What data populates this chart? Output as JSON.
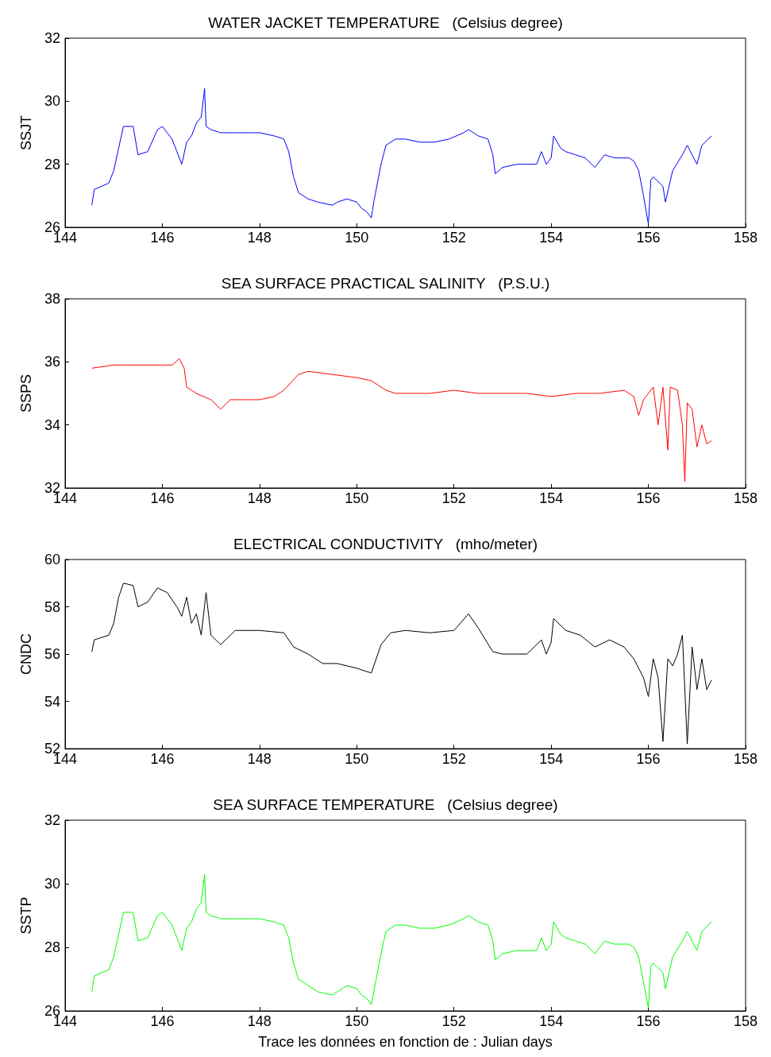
{
  "chart_data": [
    {
      "type": "line",
      "title": "WATER JACKET TEMPERATURE   (Celsius degree)",
      "ylabel": "SSJT",
      "grid": false,
      "xlim": [
        144,
        158
      ],
      "xticks": [
        144,
        146,
        148,
        150,
        152,
        154,
        156,
        158
      ],
      "ylim": [
        26,
        32
      ],
      "yticks": [
        26,
        28,
        30,
        32
      ],
      "x": [
        144.55,
        144.6,
        144.9,
        145.0,
        145.1,
        145.2,
        145.4,
        145.5,
        145.7,
        145.9,
        146.0,
        146.1,
        146.2,
        146.3,
        146.4,
        146.5,
        146.6,
        146.7,
        146.8,
        146.87,
        146.9,
        147.0,
        147.2,
        147.5,
        147.8,
        148.0,
        148.3,
        148.5,
        148.6,
        148.7,
        148.8,
        149.0,
        149.2,
        149.5,
        149.6,
        149.8,
        150.0,
        150.1,
        150.2,
        150.3,
        150.35,
        150.5,
        150.6,
        150.8,
        151.0,
        151.3,
        151.6,
        151.9,
        152.2,
        152.3,
        152.5,
        152.7,
        152.8,
        152.85,
        153.0,
        153.3,
        153.7,
        153.8,
        153.9,
        154.0,
        154.05,
        154.2,
        154.3,
        154.5,
        154.7,
        154.9,
        155.1,
        155.3,
        155.6,
        155.7,
        155.8,
        155.9,
        156.0,
        156.05,
        156.1,
        156.3,
        156.35,
        156.5,
        156.7,
        156.8,
        156.9,
        157.0,
        157.1,
        157.3
      ],
      "series": [
        {
          "color": "#0000ff",
          "values": [
            26.7,
            27.2,
            27.4,
            27.8,
            28.5,
            29.2,
            29.2,
            28.3,
            28.4,
            29.1,
            29.2,
            29.0,
            28.8,
            28.4,
            28.0,
            28.7,
            28.9,
            29.3,
            29.5,
            30.4,
            29.2,
            29.1,
            29.0,
            29.0,
            29.0,
            29.0,
            28.9,
            28.8,
            28.4,
            27.6,
            27.1,
            26.9,
            26.8,
            26.7,
            26.8,
            26.9,
            26.8,
            26.6,
            26.5,
            26.3,
            26.8,
            28.0,
            28.6,
            28.8,
            28.8,
            28.7,
            28.7,
            28.8,
            29.0,
            29.1,
            28.9,
            28.8,
            28.3,
            27.7,
            27.9,
            28.0,
            28.0,
            28.4,
            28.0,
            28.2,
            28.9,
            28.5,
            28.4,
            28.3,
            28.2,
            27.9,
            28.3,
            28.2,
            28.2,
            28.1,
            27.8,
            27.0,
            26.1,
            27.5,
            27.6,
            27.3,
            26.8,
            27.8,
            28.3,
            28.6,
            28.3,
            28.0,
            28.6,
            28.9
          ]
        }
      ]
    },
    {
      "type": "line",
      "title": "SEA SURFACE PRACTICAL SALINITY   (P.S.U.)",
      "ylabel": "SSPS",
      "grid": false,
      "xlim": [
        144,
        158
      ],
      "xticks": [
        144,
        146,
        148,
        150,
        152,
        154,
        156,
        158
      ],
      "ylim": [
        32,
        38
      ],
      "yticks": [
        32,
        34,
        36,
        38
      ],
      "x": [
        144.55,
        145.0,
        145.2,
        145.6,
        146.0,
        146.2,
        146.35,
        146.45,
        146.5,
        146.7,
        147.0,
        147.2,
        147.4,
        147.6,
        148.0,
        148.3,
        148.5,
        148.8,
        149.0,
        149.5,
        150.0,
        150.3,
        150.6,
        150.8,
        151.5,
        152.0,
        152.5,
        153.0,
        153.5,
        154.0,
        154.5,
        155.0,
        155.5,
        155.7,
        155.8,
        155.9,
        156.0,
        156.1,
        156.2,
        156.3,
        156.4,
        156.45,
        156.6,
        156.7,
        156.75,
        156.8,
        156.9,
        157.0,
        157.1,
        157.2,
        157.3
      ],
      "series": [
        {
          "color": "#ff0000",
          "values": [
            35.8,
            35.9,
            35.9,
            35.9,
            35.9,
            35.9,
            36.1,
            35.8,
            35.2,
            35.0,
            34.8,
            34.5,
            34.8,
            34.8,
            34.8,
            34.9,
            35.1,
            35.6,
            35.7,
            35.6,
            35.5,
            35.4,
            35.1,
            35.0,
            35.0,
            35.1,
            35.0,
            35.0,
            35.0,
            34.9,
            35.0,
            35.0,
            35.1,
            34.9,
            34.3,
            34.8,
            35.0,
            35.2,
            34.0,
            35.2,
            33.2,
            35.2,
            35.1,
            34.0,
            32.2,
            34.7,
            34.5,
            33.3,
            34.0,
            33.4,
            33.5
          ]
        }
      ]
    },
    {
      "type": "line",
      "title": "ELECTRICAL CONDUCTIVITY   (mho/meter)",
      "ylabel": "CNDC",
      "grid": false,
      "xlim": [
        144,
        158
      ],
      "xticks": [
        144,
        146,
        148,
        150,
        152,
        154,
        156,
        158
      ],
      "ylim": [
        52,
        60
      ],
      "yticks": [
        52,
        54,
        56,
        58,
        60
      ],
      "x": [
        144.55,
        144.6,
        144.9,
        145.0,
        145.1,
        145.2,
        145.4,
        145.5,
        145.7,
        145.9,
        146.1,
        146.3,
        146.4,
        146.5,
        146.6,
        146.7,
        146.8,
        146.9,
        147.0,
        147.2,
        147.5,
        148.0,
        148.5,
        148.7,
        149.0,
        149.3,
        149.6,
        150.0,
        150.3,
        150.5,
        150.7,
        151.0,
        151.5,
        152.0,
        152.3,
        152.5,
        152.8,
        153.0,
        153.5,
        153.8,
        153.9,
        154.0,
        154.05,
        154.3,
        154.6,
        154.9,
        155.2,
        155.5,
        155.7,
        155.9,
        156.0,
        156.1,
        156.2,
        156.3,
        156.4,
        156.5,
        156.6,
        156.7,
        156.8,
        156.9,
        157.0,
        157.1,
        157.2,
        157.3
      ],
      "series": [
        {
          "color": "#000000",
          "values": [
            56.1,
            56.6,
            56.8,
            57.3,
            58.4,
            59.0,
            58.9,
            58.0,
            58.2,
            58.8,
            58.6,
            58.0,
            57.6,
            58.4,
            57.3,
            57.7,
            56.8,
            58.6,
            56.8,
            56.4,
            57.0,
            57.0,
            56.9,
            56.3,
            56.0,
            55.6,
            55.6,
            55.4,
            55.2,
            56.4,
            56.9,
            57.0,
            56.9,
            57.0,
            57.7,
            57.1,
            56.1,
            56.0,
            56.0,
            56.6,
            56.0,
            56.5,
            57.5,
            57.0,
            56.8,
            56.3,
            56.6,
            56.3,
            55.8,
            55.0,
            54.2,
            55.8,
            55.0,
            52.3,
            55.8,
            55.5,
            56.0,
            56.8,
            52.2,
            56.3,
            54.5,
            55.8,
            54.5,
            54.9
          ]
        }
      ]
    },
    {
      "type": "line",
      "title": "SEA SURFACE TEMPERATURE   (Celsius degree)",
      "ylabel": "SSTP",
      "xlabel": "Trace les données en fonction de : Julian days",
      "grid": false,
      "xlim": [
        144,
        158
      ],
      "xticks": [
        144,
        146,
        148,
        150,
        152,
        154,
        156,
        158
      ],
      "ylim": [
        26,
        32
      ],
      "yticks": [
        26,
        28,
        30,
        32
      ],
      "x": [
        144.55,
        144.6,
        144.9,
        145.0,
        145.1,
        145.2,
        145.4,
        145.5,
        145.7,
        145.9,
        146.0,
        146.1,
        146.2,
        146.3,
        146.4,
        146.5,
        146.6,
        146.7,
        146.8,
        146.87,
        146.9,
        147.0,
        147.2,
        147.5,
        147.8,
        148.0,
        148.3,
        148.5,
        148.6,
        148.7,
        148.8,
        149.0,
        149.2,
        149.5,
        149.6,
        149.8,
        150.0,
        150.1,
        150.2,
        150.3,
        150.35,
        150.5,
        150.6,
        150.8,
        151.0,
        151.3,
        151.6,
        151.9,
        152.2,
        152.3,
        152.5,
        152.7,
        152.8,
        152.85,
        153.0,
        153.3,
        153.7,
        153.8,
        153.9,
        154.0,
        154.05,
        154.2,
        154.3,
        154.5,
        154.7,
        154.9,
        155.1,
        155.3,
        155.6,
        155.7,
        155.8,
        155.9,
        156.0,
        156.05,
        156.1,
        156.3,
        156.35,
        156.5,
        156.7,
        156.8,
        156.9,
        157.0,
        157.1,
        157.3
      ],
      "series": [
        {
          "color": "#00ff00",
          "values": [
            26.6,
            27.1,
            27.3,
            27.7,
            28.4,
            29.1,
            29.1,
            28.2,
            28.3,
            29.0,
            29.1,
            28.9,
            28.7,
            28.3,
            27.9,
            28.6,
            28.8,
            29.2,
            29.4,
            30.3,
            29.1,
            29.0,
            28.9,
            28.9,
            28.9,
            28.9,
            28.8,
            28.7,
            28.3,
            27.5,
            27.0,
            26.8,
            26.6,
            26.5,
            26.6,
            26.8,
            26.7,
            26.5,
            26.4,
            26.2,
            26.6,
            27.8,
            28.5,
            28.7,
            28.7,
            28.6,
            28.6,
            28.7,
            28.9,
            29.0,
            28.8,
            28.7,
            28.2,
            27.6,
            27.8,
            27.9,
            27.9,
            28.3,
            27.9,
            28.1,
            28.8,
            28.4,
            28.3,
            28.2,
            28.1,
            27.8,
            28.2,
            28.1,
            28.1,
            28.0,
            27.7,
            26.9,
            26.1,
            27.4,
            27.5,
            27.2,
            26.7,
            27.7,
            28.2,
            28.5,
            28.2,
            27.9,
            28.5,
            28.8
          ]
        }
      ]
    }
  ]
}
